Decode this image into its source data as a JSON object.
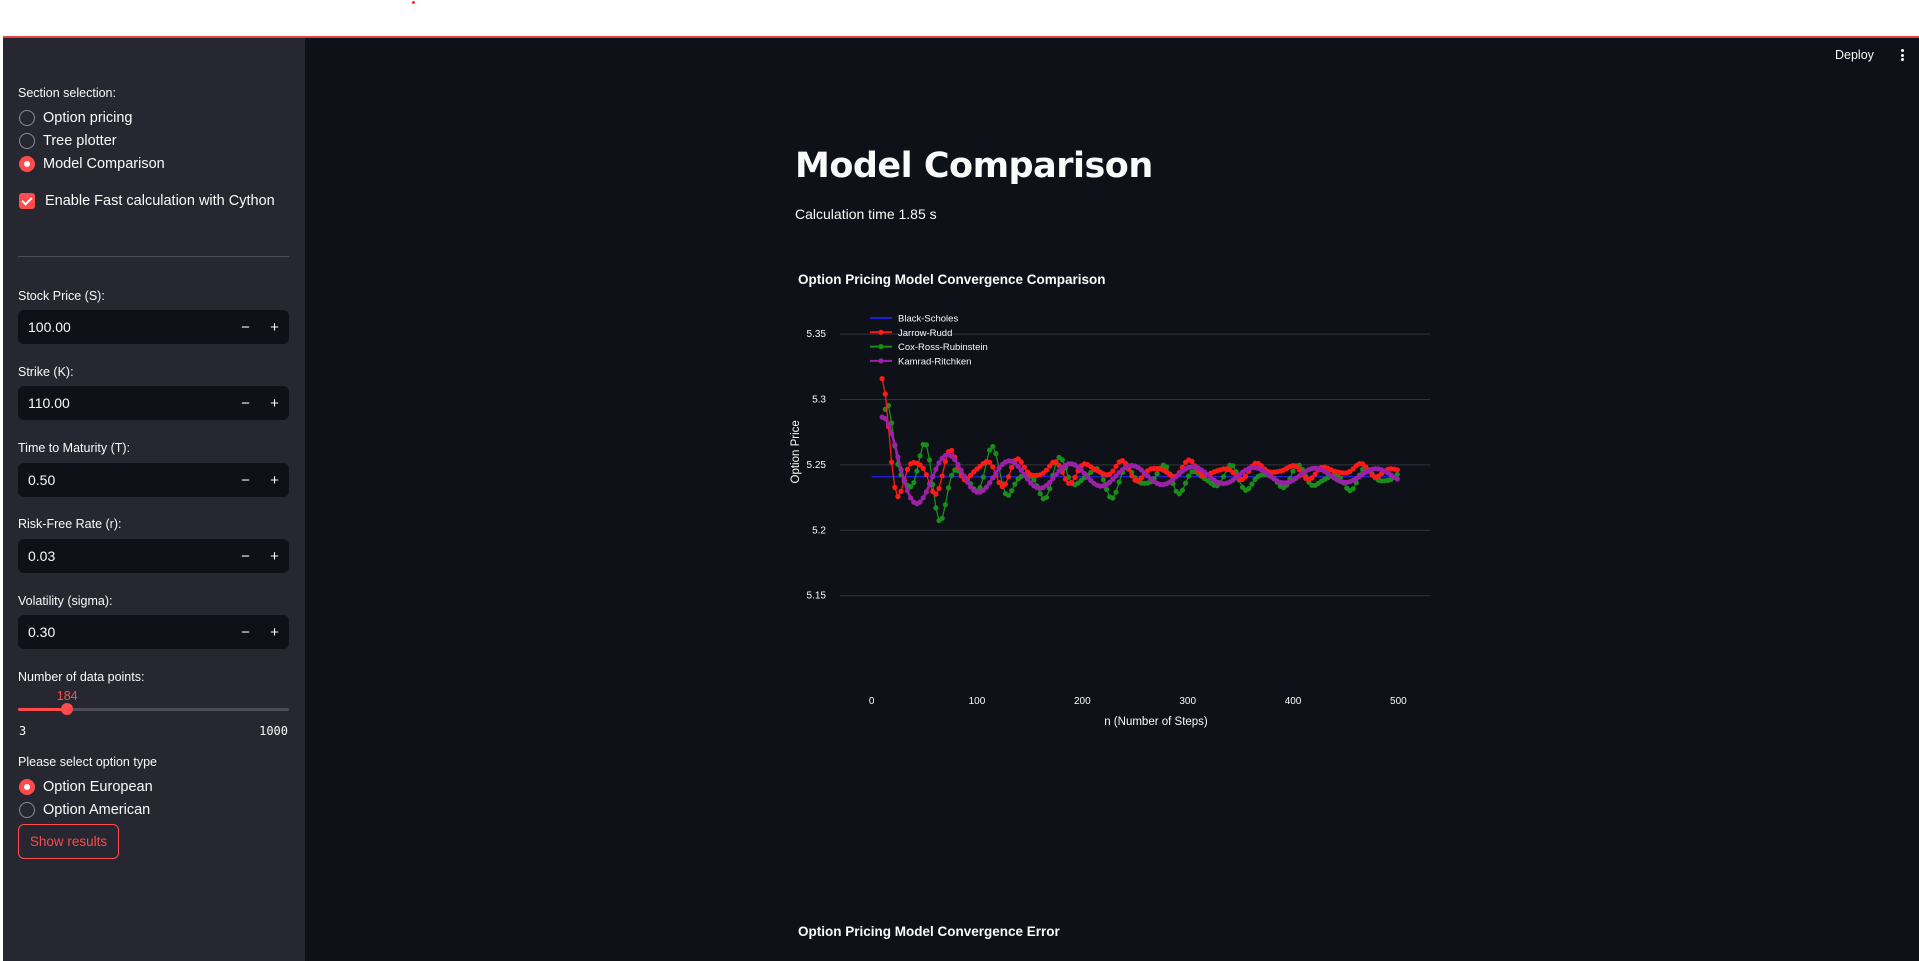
{
  "sidebar": {
    "section_label": "Section selection:",
    "sections": [
      {
        "label": "Option pricing",
        "selected": false
      },
      {
        "label": "Tree plotter",
        "selected": false
      },
      {
        "label": "Model Comparison",
        "selected": true
      }
    ],
    "cython_label": "Enable Fast calculation with Cython",
    "cython_checked": true,
    "inputs": [
      {
        "label": "Stock Price (S):",
        "value": "100.00"
      },
      {
        "label": "Strike (K):",
        "value": "110.00"
      },
      {
        "label": "Time to Maturity (T):",
        "value": "0.50"
      },
      {
        "label": "Risk-Free Rate (r):",
        "value": "0.03"
      },
      {
        "label": "Volatility (sigma):",
        "value": "0.30"
      }
    ],
    "stepper_minus": "−",
    "stepper_plus": "+",
    "slider": {
      "label": "Number of data points:",
      "value": "184",
      "min": "3",
      "max": "1000"
    },
    "option_type_label": "Please select option type",
    "option_types": [
      {
        "label": "Option European",
        "selected": true
      },
      {
        "label": "Option American",
        "selected": false
      }
    ],
    "show_button": "Show results"
  },
  "header": {
    "deploy": "Deploy"
  },
  "main": {
    "title": "Model Comparison",
    "calc_time": "Calculation time 1.85 s",
    "chart1_title": "Option Pricing Model Convergence Comparison",
    "chart2_title": "Option Pricing Model Convergence Error"
  },
  "colors": {
    "accent": "#ff4b4b",
    "black_scholes": "#1f1fd6",
    "jarrow_rudd": "#ff1a1a",
    "crr": "#1a8c1a",
    "kamrad": "#9b22a8"
  },
  "chart_data": {
    "type": "line",
    "title": "Option Pricing Model Convergence Comparison",
    "xlabel": "n (Number of Steps)",
    "ylabel": "Option Price",
    "xlim": [
      -30,
      530
    ],
    "ylim": [
      5.11,
      5.37
    ],
    "xticks": [
      0,
      100,
      200,
      300,
      400,
      500
    ],
    "yticks": [
      5.15,
      5.2,
      5.25,
      5.3,
      5.35
    ],
    "ytick_labels": [
      "5.15",
      "5.2",
      "5.25",
      "5.3",
      "5.35"
    ],
    "legend_position": "top-left",
    "black_scholes_price": 5.241,
    "series": [
      {
        "name": "Black-Scholes",
        "kind": "flat",
        "value": 5.241
      },
      {
        "name": "Jarrow-Rudd",
        "kind": "oscillating",
        "amplitude": 0.118,
        "decay": 0.62,
        "phase": 0.0,
        "bias": 0.0045,
        "x_start": 10,
        "x_end": 500,
        "step": 3
      },
      {
        "name": "Cox-Ross-Rubinstein",
        "kind": "oscillating",
        "amplitude": 0.145,
        "decay": 0.58,
        "phase": 1.3,
        "bias": -0.0015,
        "x_start": 13,
        "x_end": 500,
        "step": 3
      },
      {
        "name": "Kamrad-Ritchken",
        "kind": "smooth",
        "amplitude": 0.052,
        "decay": 0.6,
        "period": 58,
        "bias": 0.001,
        "x_start": 10,
        "x_end": 500,
        "step": 3
      }
    ]
  }
}
